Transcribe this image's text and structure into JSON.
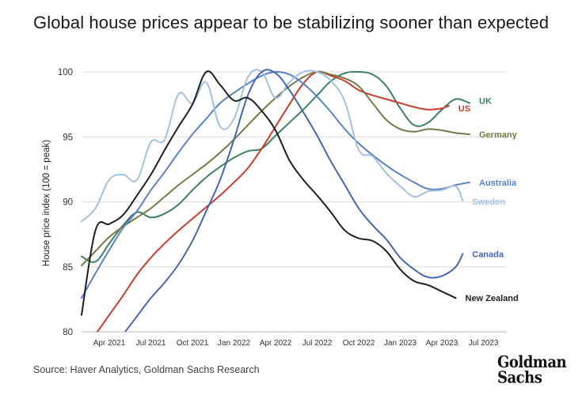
{
  "title": "Global house prices appear to be stabilizing sooner than expected",
  "source": "Source: Haver Analytics, Goldman Sachs Research",
  "logo": {
    "line1": "Goldman",
    "line2": "Sachs"
  },
  "chart_data": {
    "type": "line",
    "title": "Global house prices appear to be stabilizing sooner than expected",
    "xlabel": "",
    "ylabel": "House price index (100 = peak)",
    "ylim": [
      80,
      100
    ],
    "yticks": [
      80,
      85,
      90,
      95,
      100
    ],
    "xlim": [
      0,
      30
    ],
    "x_tick_positions": [
      2,
      5,
      8,
      11,
      14,
      17,
      20,
      23,
      26,
      29
    ],
    "x_tick_labels": [
      "Apr 2021",
      "Jul 2021",
      "Oct 2021",
      "Jan 2022",
      "Apr 2022",
      "Jul 2022",
      "Oct 2022",
      "Jan 2023",
      "Apr 2023",
      "Jul 2023"
    ],
    "x_unit": "months since Feb 2021",
    "grid": "horizontal",
    "series": [
      {
        "name": "UK",
        "color": "#3d7f68",
        "points": [
          [
            0,
            85.8
          ],
          [
            1,
            85.4
          ],
          [
            2,
            86.8
          ],
          [
            3,
            88.2
          ],
          [
            4,
            89.2
          ],
          [
            5,
            88.8
          ],
          [
            6,
            89.1
          ],
          [
            7,
            89.8
          ],
          [
            8,
            90.9
          ],
          [
            9,
            91.9
          ],
          [
            10,
            92.7
          ],
          [
            11,
            93.4
          ],
          [
            12,
            93.9
          ],
          [
            13,
            94.1
          ],
          [
            14,
            95.1
          ],
          [
            15,
            96.1
          ],
          [
            16,
            97.1
          ],
          [
            17,
            98.2
          ],
          [
            18,
            99.3
          ],
          [
            19,
            99.9
          ],
          [
            20,
            100
          ],
          [
            21,
            99.8
          ],
          [
            22,
            98.9
          ],
          [
            23,
            97.2
          ],
          [
            24,
            95.9
          ],
          [
            25,
            96.1
          ],
          [
            26,
            97.1
          ],
          [
            27,
            97.9
          ],
          [
            28,
            97.6
          ]
        ]
      },
      {
        "name": "US",
        "color": "#c93c2e",
        "points": [
          [
            1,
            79.8
          ],
          [
            2,
            81.3
          ],
          [
            3,
            82.8
          ],
          [
            4,
            84.4
          ],
          [
            5,
            85.7
          ],
          [
            6,
            86.8
          ],
          [
            7,
            87.8
          ],
          [
            8,
            88.7
          ],
          [
            9,
            89.6
          ],
          [
            10,
            90.5
          ],
          [
            11,
            91.5
          ],
          [
            12,
            92.6
          ],
          [
            13,
            94.1
          ],
          [
            14,
            95.8
          ],
          [
            15,
            97.5
          ],
          [
            16,
            99.1
          ],
          [
            17,
            100
          ],
          [
            18,
            99.7
          ],
          [
            19,
            99.3
          ],
          [
            20,
            98.6
          ],
          [
            21,
            98.2
          ],
          [
            22,
            97.9
          ],
          [
            23,
            97.6
          ],
          [
            24,
            97.3
          ],
          [
            25,
            97.1
          ],
          [
            26,
            97.2
          ],
          [
            26.5,
            97.4
          ]
        ]
      },
      {
        "name": "Germany",
        "color": "#777a46",
        "points": [
          [
            0,
            85.1
          ],
          [
            1,
            86.2
          ],
          [
            2,
            87.3
          ],
          [
            3,
            88.1
          ],
          [
            4,
            88.8
          ],
          [
            5,
            89.5
          ],
          [
            6,
            90.4
          ],
          [
            7,
            91.3
          ],
          [
            8,
            92.1
          ],
          [
            9,
            92.9
          ],
          [
            10,
            93.8
          ],
          [
            11,
            94.8
          ],
          [
            12,
            95.9
          ],
          [
            13,
            97
          ],
          [
            14,
            98
          ],
          [
            15,
            98.9
          ],
          [
            16,
            99.6
          ],
          [
            17,
            100
          ],
          [
            18,
            99.8
          ],
          [
            19,
            99.5
          ],
          [
            20,
            98.9
          ],
          [
            21,
            97.6
          ],
          [
            22,
            96.3
          ],
          [
            23,
            95.6
          ],
          [
            24,
            95.4
          ],
          [
            25,
            95.6
          ],
          [
            26,
            95.5
          ],
          [
            27,
            95.3
          ],
          [
            28,
            95.2
          ]
        ]
      },
      {
        "name": "Australia",
        "color": "#5b82c7",
        "points": [
          [
            0,
            82.6
          ],
          [
            1,
            84.5
          ],
          [
            2,
            86.3
          ],
          [
            3,
            88
          ],
          [
            4,
            89.3
          ],
          [
            5,
            90.9
          ],
          [
            6,
            92.3
          ],
          [
            7,
            93.8
          ],
          [
            8,
            95.2
          ],
          [
            9,
            96.4
          ],
          [
            10,
            97.6
          ],
          [
            11,
            98.4
          ],
          [
            12,
            99.1
          ],
          [
            13,
            99.7
          ],
          [
            14,
            100
          ],
          [
            15,
            99.8
          ],
          [
            16,
            99.1
          ],
          [
            17,
            98.1
          ],
          [
            18,
            96.9
          ],
          [
            19,
            95.6
          ],
          [
            20,
            94.5
          ],
          [
            21,
            93.6
          ],
          [
            22,
            92.8
          ],
          [
            23,
            92.1
          ],
          [
            24,
            91.5
          ],
          [
            25,
            91
          ],
          [
            26,
            91
          ],
          [
            27,
            91.3
          ],
          [
            28,
            91.5
          ]
        ]
      },
      {
        "name": "Sweden",
        "color": "#a5c0e1",
        "points": [
          [
            0,
            88.5
          ],
          [
            1,
            89.5
          ],
          [
            2,
            91.7
          ],
          [
            3,
            92.1
          ],
          [
            4,
            91.7
          ],
          [
            5,
            94.6
          ],
          [
            6,
            94.8
          ],
          [
            7,
            98.3
          ],
          [
            8,
            97.6
          ],
          [
            9,
            99.2
          ],
          [
            10,
            95.8
          ],
          [
            11,
            96.4
          ],
          [
            12,
            99.6
          ],
          [
            13,
            100
          ],
          [
            14,
            98
          ],
          [
            15,
            99.2
          ],
          [
            16,
            100
          ],
          [
            17,
            100
          ],
          [
            18,
            99.3
          ],
          [
            19,
            97.7
          ],
          [
            20,
            94
          ],
          [
            21,
            93.5
          ],
          [
            22,
            92.2
          ],
          [
            23,
            91.2
          ],
          [
            24,
            90.4
          ],
          [
            25,
            90.8
          ],
          [
            26,
            90.9
          ],
          [
            27,
            91.2
          ],
          [
            27.5,
            90.1
          ]
        ]
      },
      {
        "name": "Canada",
        "color": "#4766b2",
        "points": [
          [
            3,
            79.8
          ],
          [
            4,
            81.2
          ],
          [
            5,
            82.6
          ],
          [
            6,
            83.8
          ],
          [
            7,
            85.2
          ],
          [
            8,
            87
          ],
          [
            9,
            89.3
          ],
          [
            10,
            91.7
          ],
          [
            11,
            94.8
          ],
          [
            12,
            98.2
          ],
          [
            13,
            100
          ],
          [
            14,
            99.9
          ],
          [
            15,
            98.6
          ],
          [
            16,
            96.9
          ],
          [
            17,
            95.1
          ],
          [
            18,
            93.1
          ],
          [
            19,
            91.3
          ],
          [
            20,
            89.5
          ],
          [
            21,
            88.2
          ],
          [
            22,
            87.1
          ],
          [
            23,
            85.7
          ],
          [
            24,
            84.8
          ],
          [
            25,
            84.2
          ],
          [
            26,
            84.3
          ],
          [
            27,
            85
          ],
          [
            27.5,
            86
          ]
        ]
      },
      {
        "name": "New Zealand",
        "color": "#1f1f24",
        "points": [
          [
            0,
            81.3
          ],
          [
            1,
            87.8
          ],
          [
            2,
            88.3
          ],
          [
            3,
            89
          ],
          [
            4,
            90.5
          ],
          [
            5,
            92.1
          ],
          [
            6,
            94
          ],
          [
            7,
            95.8
          ],
          [
            8,
            97.5
          ],
          [
            9,
            100
          ],
          [
            10,
            99
          ],
          [
            11,
            97.8
          ],
          [
            12,
            98
          ],
          [
            13,
            97
          ],
          [
            14,
            95.5
          ],
          [
            15,
            93.2
          ],
          [
            16,
            91.7
          ],
          [
            17,
            90.5
          ],
          [
            18,
            89.2
          ],
          [
            19,
            87.8
          ],
          [
            20,
            87.2
          ],
          [
            21,
            87
          ],
          [
            22,
            86.2
          ],
          [
            23,
            84.8
          ],
          [
            24,
            83.9
          ],
          [
            25,
            83.6
          ],
          [
            26,
            83.1
          ],
          [
            27,
            82.6
          ]
        ]
      }
    ]
  }
}
